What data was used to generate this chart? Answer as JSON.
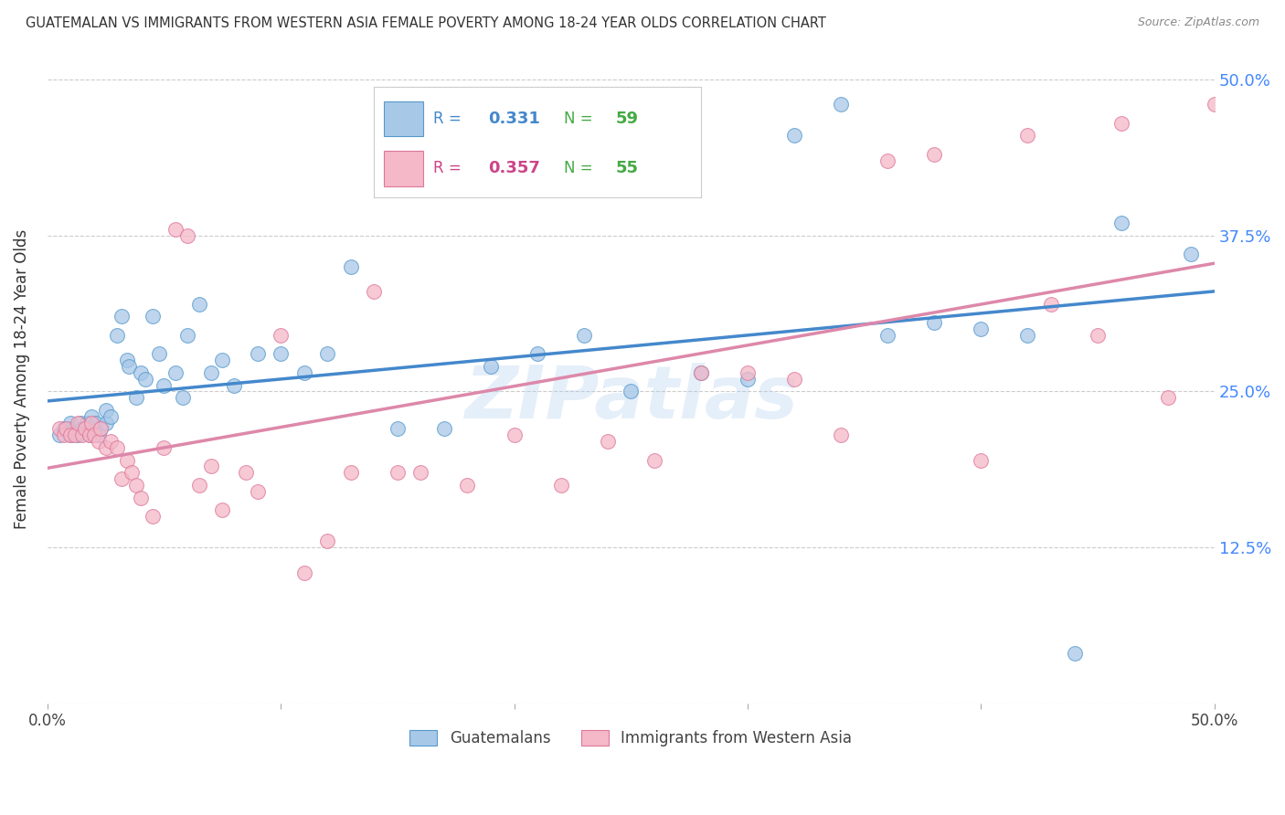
{
  "title": "GUATEMALAN VS IMMIGRANTS FROM WESTERN ASIA FEMALE POVERTY AMONG 18-24 YEAR OLDS CORRELATION CHART",
  "source": "Source: ZipAtlas.com",
  "ylabel": "Female Poverty Among 18-24 Year Olds",
  "xlim": [
    0.0,
    0.5
  ],
  "ylim": [
    0.0,
    0.52
  ],
  "legend1_R": "0.331",
  "legend1_N": "59",
  "legend2_R": "0.357",
  "legend2_N": "55",
  "color_blue": "#a8c8e8",
  "color_pink": "#f4b8c8",
  "edge_blue": "#5599cc",
  "edge_pink": "#dd7799",
  "line_blue": "#4488cc",
  "line_pink": "#dd88aa",
  "watermark": "ZIPatlas",
  "blue_x": [
    0.005,
    0.007,
    0.009,
    0.01,
    0.01,
    0.012,
    0.013,
    0.014,
    0.015,
    0.016,
    0.017,
    0.018,
    0.019,
    0.02,
    0.021,
    0.022,
    0.023,
    0.025,
    0.025,
    0.027,
    0.03,
    0.032,
    0.034,
    0.035,
    0.038,
    0.04,
    0.042,
    0.045,
    0.048,
    0.05,
    0.055,
    0.058,
    0.06,
    0.065,
    0.07,
    0.075,
    0.08,
    0.09,
    0.1,
    0.11,
    0.12,
    0.13,
    0.15,
    0.17,
    0.19,
    0.21,
    0.23,
    0.25,
    0.28,
    0.3,
    0.32,
    0.34,
    0.36,
    0.38,
    0.4,
    0.42,
    0.44,
    0.46,
    0.49
  ],
  "blue_y": [
    0.215,
    0.22,
    0.22,
    0.215,
    0.225,
    0.22,
    0.215,
    0.225,
    0.22,
    0.22,
    0.225,
    0.215,
    0.23,
    0.22,
    0.225,
    0.215,
    0.22,
    0.225,
    0.235,
    0.23,
    0.295,
    0.31,
    0.275,
    0.27,
    0.245,
    0.265,
    0.26,
    0.31,
    0.28,
    0.255,
    0.265,
    0.245,
    0.295,
    0.32,
    0.265,
    0.275,
    0.255,
    0.28,
    0.28,
    0.265,
    0.28,
    0.35,
    0.22,
    0.22,
    0.27,
    0.28,
    0.295,
    0.25,
    0.265,
    0.26,
    0.455,
    0.48,
    0.295,
    0.305,
    0.3,
    0.295,
    0.04,
    0.385,
    0.36
  ],
  "pink_x": [
    0.005,
    0.007,
    0.008,
    0.01,
    0.012,
    0.013,
    0.015,
    0.016,
    0.018,
    0.019,
    0.02,
    0.022,
    0.023,
    0.025,
    0.027,
    0.03,
    0.032,
    0.034,
    0.036,
    0.038,
    0.04,
    0.045,
    0.05,
    0.055,
    0.06,
    0.065,
    0.07,
    0.075,
    0.085,
    0.09,
    0.1,
    0.11,
    0.12,
    0.13,
    0.14,
    0.15,
    0.16,
    0.18,
    0.2,
    0.22,
    0.24,
    0.26,
    0.28,
    0.3,
    0.32,
    0.34,
    0.36,
    0.38,
    0.4,
    0.42,
    0.43,
    0.45,
    0.46,
    0.48,
    0.5
  ],
  "pink_y": [
    0.22,
    0.215,
    0.22,
    0.215,
    0.215,
    0.225,
    0.215,
    0.22,
    0.215,
    0.225,
    0.215,
    0.21,
    0.22,
    0.205,
    0.21,
    0.205,
    0.18,
    0.195,
    0.185,
    0.175,
    0.165,
    0.15,
    0.205,
    0.38,
    0.375,
    0.175,
    0.19,
    0.155,
    0.185,
    0.17,
    0.295,
    0.105,
    0.13,
    0.185,
    0.33,
    0.185,
    0.185,
    0.175,
    0.215,
    0.175,
    0.21,
    0.195,
    0.265,
    0.265,
    0.26,
    0.215,
    0.435,
    0.44,
    0.195,
    0.455,
    0.32,
    0.295,
    0.465,
    0.245,
    0.48
  ]
}
